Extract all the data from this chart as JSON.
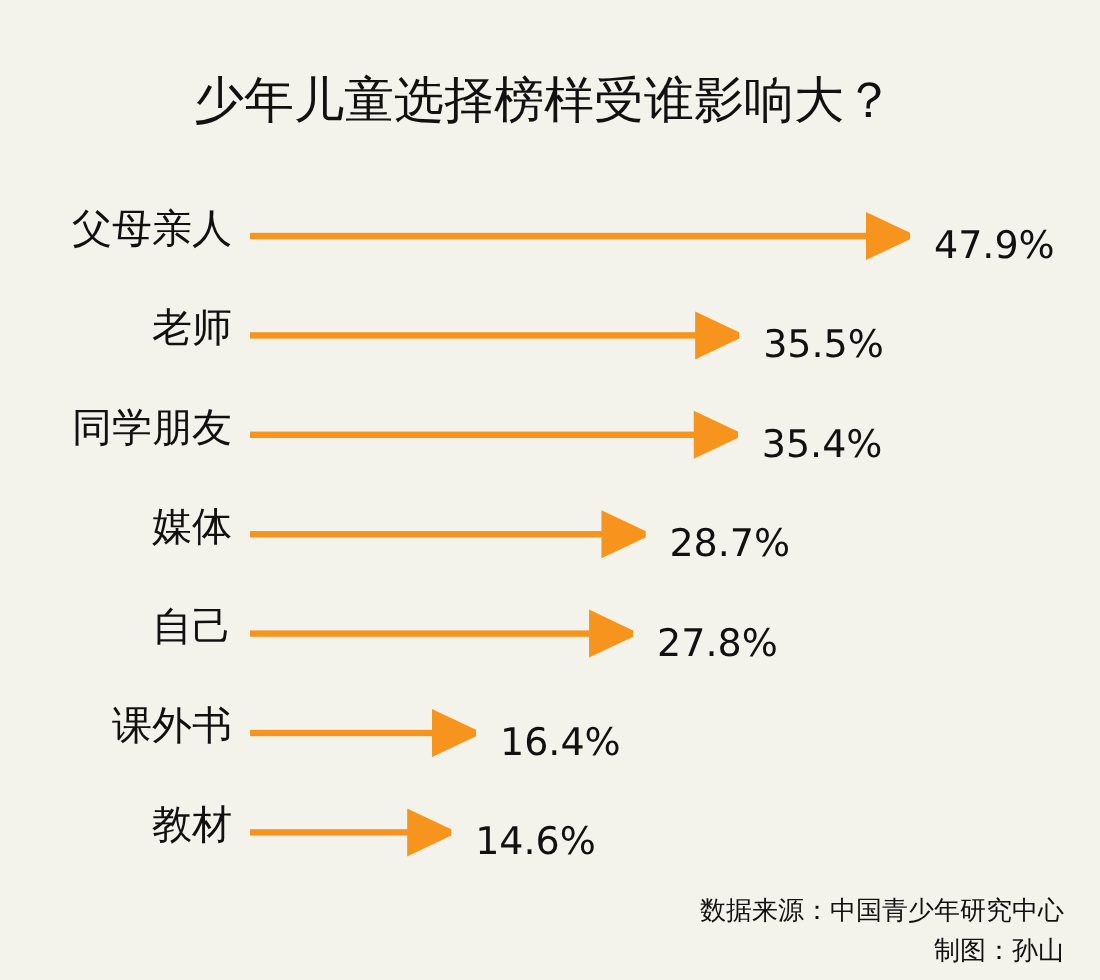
{
  "chart_data": {
    "type": "bar",
    "orientation": "horizontal",
    "title": "少年儿童选择榜样受谁影响大？",
    "categories": [
      "父母亲人",
      "老师",
      "同学朋友",
      "媒体",
      "自己",
      "课外书",
      "教材"
    ],
    "values": [
      47.9,
      35.5,
      35.4,
      28.7,
      27.8,
      16.4,
      14.6
    ],
    "value_labels": [
      "47.9%",
      "35.5%",
      "35.4%",
      "28.7%",
      "27.8%",
      "16.4%",
      "14.6%"
    ],
    "color": "#f7941d",
    "annotations": [
      "数据来源：中国青少年研究中心",
      "制图：孙山"
    ]
  }
}
